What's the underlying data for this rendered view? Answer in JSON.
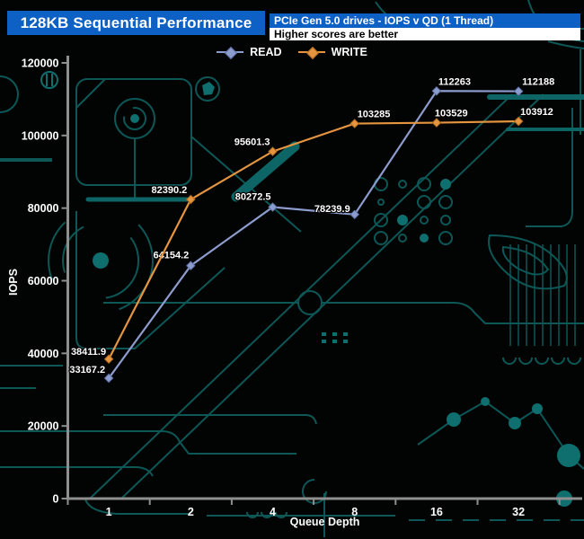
{
  "header": {
    "title": "128KB Sequential Performance",
    "subtitle": "PCIe Gen 5.0 drives - IOPS v QD (1 Thread)",
    "note": "Higher scores are better"
  },
  "legend": [
    {
      "label": "READ",
      "color": "#8c9ccd",
      "edge": "#5f72a6"
    },
    {
      "label": "WRITE",
      "color": "#e5953f",
      "edge": "#b06d1f"
    }
  ],
  "axes": {
    "x_title": "Queue Depth",
    "y_title": "IOPS"
  },
  "colors": {
    "header_blue": "#0d60c4",
    "axis_gray": "#8f8f8f",
    "circuit_teal": "#0d5757",
    "circuit_bright": "#0f6e6e"
  },
  "chart_data": {
    "type": "line",
    "title": "128KB Sequential Performance",
    "xlabel": "Queue Depth",
    "ylabel": "IOPS",
    "categories": [
      "1",
      "2",
      "4",
      "8",
      "16",
      "32"
    ],
    "ylim": [
      0,
      120000
    ],
    "y_ticks": [
      0,
      20000,
      40000,
      60000,
      80000,
      100000,
      120000
    ],
    "grid": false,
    "legend_position": "top-center",
    "series": [
      {
        "name": "READ",
        "color": "#8c9ccd",
        "marker_edge": "#5f72a6",
        "values": [
          33167.2,
          64154.2,
          80272.5,
          78239.9,
          112263,
          112188
        ],
        "labels": [
          "33167.2",
          "64154.2",
          "80272.5",
          "78239.9",
          "112263",
          "112188"
        ],
        "label_anchor": [
          "end",
          "end",
          "end",
          "end",
          "start",
          "start"
        ],
        "label_dx": [
          -4,
          -2,
          -2,
          -5,
          2,
          4
        ],
        "label_dy": [
          -6,
          -8,
          -8,
          -3,
          -7,
          -7
        ]
      },
      {
        "name": "WRITE",
        "color": "#e5953f",
        "marker_edge": "#b06d1f",
        "values": [
          38411.9,
          82390.2,
          95601.3,
          103285,
          103529,
          103912
        ],
        "labels": [
          "38411.9",
          "82390.2",
          "95601.3",
          "103285",
          "103529",
          "103912"
        ],
        "label_anchor": [
          "end",
          "end",
          "end",
          "start",
          "start",
          "start"
        ],
        "label_dx": [
          -3,
          -4,
          -3,
          3,
          -2,
          2
        ],
        "label_dy": [
          -5,
          -7,
          -7,
          -7,
          -7,
          -7
        ]
      }
    ]
  }
}
